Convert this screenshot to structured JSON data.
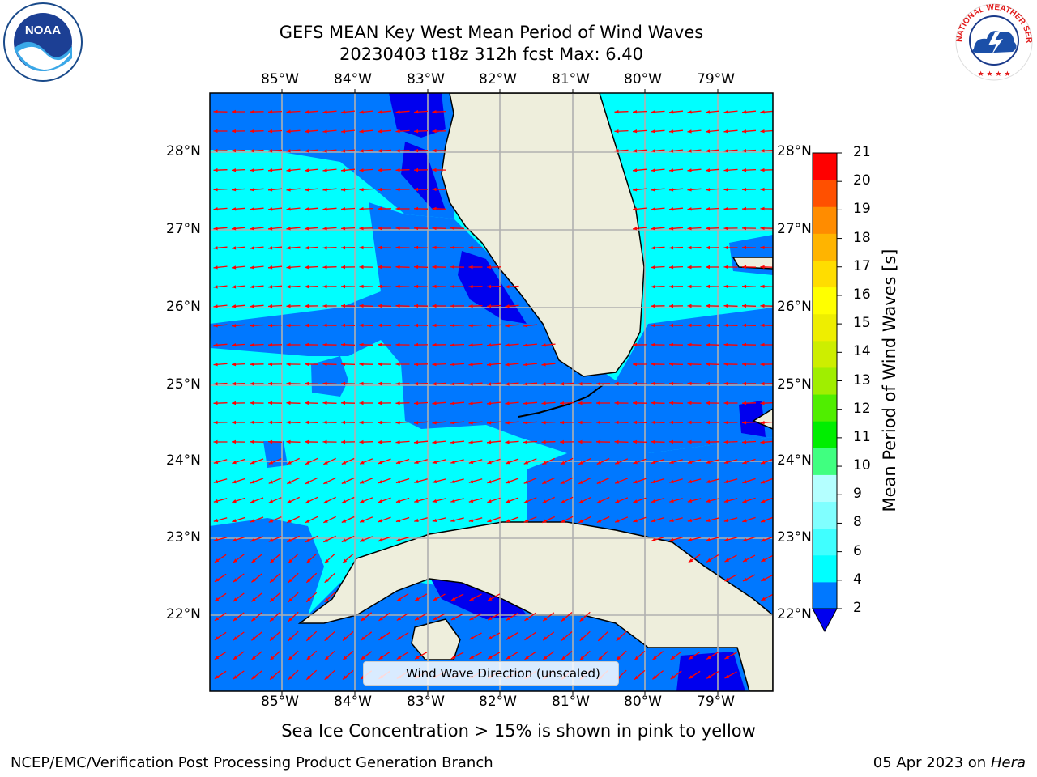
{
  "header": {
    "title_line1": "GEFS MEAN Key West Mean Period of Wind Waves",
    "title_line2": "20230403 t18z 312h fcst   Max: 6.40"
  },
  "logos": {
    "noaa_text": "NOAA",
    "nws_text": "NATIONAL WEATHER SERVICE"
  },
  "map": {
    "lon_labels": [
      "85°W",
      "84°W",
      "83°W",
      "82°W",
      "81°W",
      "80°W",
      "79°W"
    ],
    "lat_labels": [
      "28°N",
      "27°N",
      "26°N",
      "25°N",
      "24°N",
      "23°N",
      "22°N"
    ],
    "legend_label": "Wind Wave Direction (unscaled)",
    "vector_color": "#ff0000",
    "land_color": "#eeeedc"
  },
  "colorbar": {
    "title": "Mean Period of Wind Waves [s]",
    "ticks": [
      "2",
      "4",
      "6",
      "8",
      "9",
      "10",
      "11",
      "12",
      "13",
      "14",
      "15",
      "16",
      "17",
      "18",
      "19",
      "20",
      "21"
    ],
    "colors": [
      "#0000ee",
      "#0078ff",
      "#00ffff",
      "#40ffff",
      "#80ffff",
      "#b4ffff",
      "#40ff80",
      "#00ee00",
      "#50ee00",
      "#a0ee00",
      "#cdee00",
      "#eeee00",
      "#ffff00",
      "#ffdd00",
      "#ffb400",
      "#ff8c00",
      "#ff5000",
      "#ff0000"
    ]
  },
  "caption": "Sea Ice Concentration > 15% is shown in pink to yellow",
  "footer": {
    "left": "NCEP/EMC/Verification Post Processing Product Generation Branch",
    "right_date": "05 Apr 2023 on ",
    "right_host": "Hera"
  }
}
